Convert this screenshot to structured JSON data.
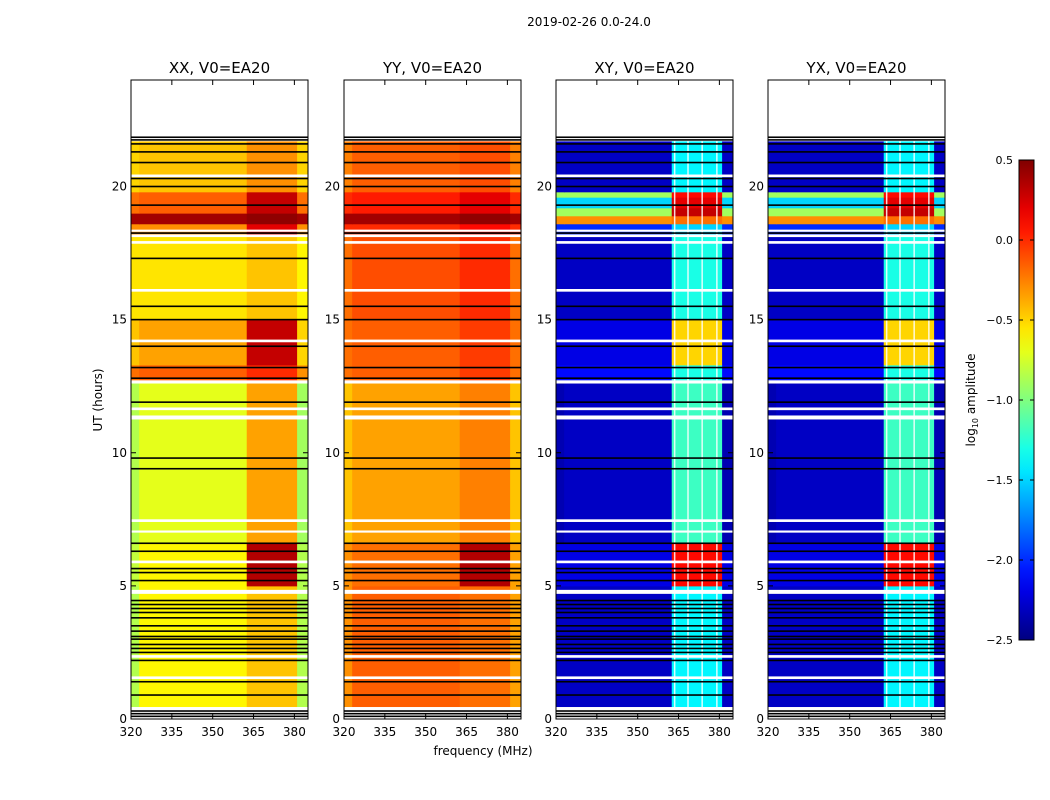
{
  "chart_data": {
    "type": "heatmap",
    "title": "2019-02-26 0.0-24.0",
    "xlabel": "frequency (MHz)",
    "ylabel": "UT (hours)",
    "xlim": [
      320,
      385
    ],
    "ylim": [
      0,
      24
    ],
    "xticks": [
      "320",
      "335",
      "350",
      "365",
      "380"
    ],
    "yticks": [
      "0",
      "5",
      "10",
      "15",
      "20"
    ],
    "xtick_values": [
      320,
      335,
      350,
      365,
      380
    ],
    "ytick_values": [
      0,
      5,
      10,
      15,
      20
    ],
    "colormap": "jet",
    "colorbar": {
      "label_main": "log",
      "label_sub": "10",
      "label_rest": " amplitude",
      "range": [
        -2.5,
        0.5
      ],
      "ticks": [
        "0.5",
        "0.0",
        "−0.5",
        "−1.0",
        "−1.5",
        "−2.0",
        "−2.5"
      ],
      "tick_values": [
        0.5,
        0.0,
        -0.5,
        -1.0,
        -1.5,
        -2.0,
        -2.5
      ]
    },
    "freq_segments_mhz": [
      320,
      323,
      362.5,
      381,
      385
    ],
    "flagged_white_ranges_hours": [
      [
        0,
        0.45
      ],
      [
        1.5,
        1.6
      ],
      [
        2.3,
        2.4
      ],
      [
        4.7,
        4.85
      ],
      [
        5.85,
        5.95
      ],
      [
        7.0,
        7.08
      ],
      [
        7.4,
        7.5
      ],
      [
        11.25,
        11.4
      ],
      [
        11.6,
        11.7
      ],
      [
        12.6,
        12.72
      ],
      [
        14.15,
        14.25
      ],
      [
        16.05,
        16.15
      ],
      [
        17.85,
        17.95
      ],
      [
        18.1,
        18.2
      ],
      [
        18.3,
        18.38
      ],
      [
        20.35,
        20.45
      ],
      [
        21.7,
        24
      ]
    ],
    "flagged_black_lines_hours": [
      0.1,
      0.2,
      0.3,
      0.9,
      1.4,
      2.2,
      2.5,
      2.65,
      2.8,
      3.0,
      3.1,
      3.3,
      3.5,
      3.8,
      4.0,
      4.15,
      4.3,
      4.45,
      5.2,
      5.5,
      5.65,
      6.3,
      6.6,
      9.4,
      9.8,
      11.9,
      12.8,
      13.2,
      14.0,
      15.0,
      15.5,
      17.3,
      18.25,
      19.3,
      20.0,
      20.3,
      20.9,
      21.3,
      21.6,
      21.75,
      21.85
    ],
    "rfi_white_columns_mhz": [
      363.3,
      368.2,
      373.4,
      378.8
    ],
    "panels": [
      {
        "title": "XX, V0=EA20",
        "name": "xx",
        "bands": [
          [
            0.45,
            5.0,
            [
              -0.85,
              -0.6,
              -0.45,
              -0.85
            ]
          ],
          [
            5.0,
            6.6,
            [
              -0.8,
              -0.6,
              0.35,
              -0.85
            ]
          ],
          [
            6.6,
            12.7,
            [
              -0.85,
              -0.7,
              -0.35,
              -0.9
            ]
          ],
          [
            12.7,
            13.3,
            [
              -0.2,
              -0.15,
              0.0,
              -0.3
            ]
          ],
          [
            13.3,
            15.0,
            [
              -0.45,
              -0.35,
              0.3,
              -0.5
            ]
          ],
          [
            15.0,
            18.2,
            [
              -0.55,
              -0.55,
              -0.45,
              -0.6
            ]
          ],
          [
            18.2,
            18.6,
            [
              -0.3,
              -0.3,
              0.2,
              -0.3
            ]
          ],
          [
            18.6,
            19.0,
            [
              0.4,
              0.4,
              0.45,
              0.4
            ]
          ],
          [
            19.0,
            19.8,
            [
              -0.2,
              -0.15,
              0.3,
              -0.2
            ]
          ],
          [
            19.8,
            21.7,
            [
              -0.5,
              -0.45,
              -0.3,
              -0.5
            ]
          ]
        ]
      },
      {
        "title": "YY, V0=EA20",
        "name": "yy",
        "bands": [
          [
            0.45,
            5.0,
            [
              -0.3,
              -0.15,
              -0.2,
              -0.35
            ]
          ],
          [
            5.0,
            6.6,
            [
              -0.3,
              -0.2,
              0.35,
              -0.35
            ]
          ],
          [
            6.6,
            12.7,
            [
              -0.45,
              -0.35,
              -0.25,
              -0.45
            ]
          ],
          [
            12.7,
            15.0,
            [
              -0.2,
              -0.15,
              -0.05,
              -0.2
            ]
          ],
          [
            15.0,
            18.2,
            [
              -0.2,
              -0.1,
              0.0,
              -0.2
            ]
          ],
          [
            18.2,
            18.6,
            [
              0.0,
              0.0,
              0.1,
              0.0
            ]
          ],
          [
            18.6,
            19.0,
            [
              0.4,
              0.4,
              0.45,
              0.4
            ]
          ],
          [
            19.0,
            19.8,
            [
              0.0,
              0.05,
              0.2,
              0.0
            ]
          ],
          [
            19.8,
            21.7,
            [
              -0.25,
              -0.15,
              -0.1,
              -0.25
            ]
          ]
        ]
      },
      {
        "title": "XY, V0=EA20",
        "name": "xy",
        "bands": [
          [
            0.45,
            5.0,
            [
              -2.3,
              -2.3,
              -1.4,
              -2.3
            ]
          ],
          [
            5.0,
            6.6,
            [
              -2.2,
              -2.2,
              0.1,
              -2.2
            ]
          ],
          [
            6.6,
            12.7,
            [
              -2.35,
              -2.3,
              -1.2,
              -2.35
            ]
          ],
          [
            12.7,
            13.3,
            [
              -2.1,
              -2.1,
              -1.3,
              -2.1
            ]
          ],
          [
            13.3,
            15.0,
            [
              -2.2,
              -2.2,
              -0.5,
              -2.2
            ]
          ],
          [
            15.0,
            18.2,
            [
              -2.3,
              -2.3,
              -1.3,
              -2.3
            ]
          ],
          [
            18.2,
            18.6,
            [
              -2.0,
              -2.0,
              -1.5,
              -2.0
            ]
          ],
          [
            18.6,
            18.9,
            [
              -0.3,
              -0.3,
              -0.2,
              -0.3
            ]
          ],
          [
            18.9,
            19.2,
            [
              -0.9,
              -0.9,
              0.3,
              -0.9
            ]
          ],
          [
            19.2,
            19.6,
            [
              -1.5,
              -1.5,
              0.2,
              -1.5
            ]
          ],
          [
            19.6,
            19.8,
            [
              -0.9,
              -0.9,
              0.1,
              -0.9
            ]
          ],
          [
            19.8,
            21.7,
            [
              -2.3,
              -2.3,
              -1.4,
              -2.3
            ]
          ]
        ]
      },
      {
        "title": "YX, V0=EA20",
        "name": "yx",
        "bands": [
          [
            0.45,
            5.0,
            [
              -2.3,
              -2.3,
              -1.4,
              -2.3
            ]
          ],
          [
            5.0,
            6.6,
            [
              -2.2,
              -2.2,
              0.1,
              -2.2
            ]
          ],
          [
            6.6,
            12.7,
            [
              -2.35,
              -2.3,
              -1.2,
              -2.35
            ]
          ],
          [
            12.7,
            13.3,
            [
              -2.1,
              -2.1,
              -1.3,
              -2.1
            ]
          ],
          [
            13.3,
            15.0,
            [
              -2.2,
              -2.2,
              -0.5,
              -2.2
            ]
          ],
          [
            15.0,
            18.2,
            [
              -2.3,
              -2.3,
              -1.3,
              -2.3
            ]
          ],
          [
            18.2,
            18.6,
            [
              -2.0,
              -2.0,
              -1.5,
              -2.0
            ]
          ],
          [
            18.6,
            18.9,
            [
              -0.3,
              -0.3,
              -0.2,
              -0.3
            ]
          ],
          [
            18.9,
            19.2,
            [
              -0.9,
              -0.9,
              0.3,
              -0.9
            ]
          ],
          [
            19.2,
            19.6,
            [
              -1.5,
              -1.5,
              0.2,
              -1.5
            ]
          ],
          [
            19.6,
            19.8,
            [
              -0.9,
              -0.9,
              0.1,
              -0.9
            ]
          ],
          [
            19.8,
            21.7,
            [
              -2.3,
              -2.3,
              -1.4,
              -2.3
            ]
          ]
        ]
      }
    ]
  }
}
